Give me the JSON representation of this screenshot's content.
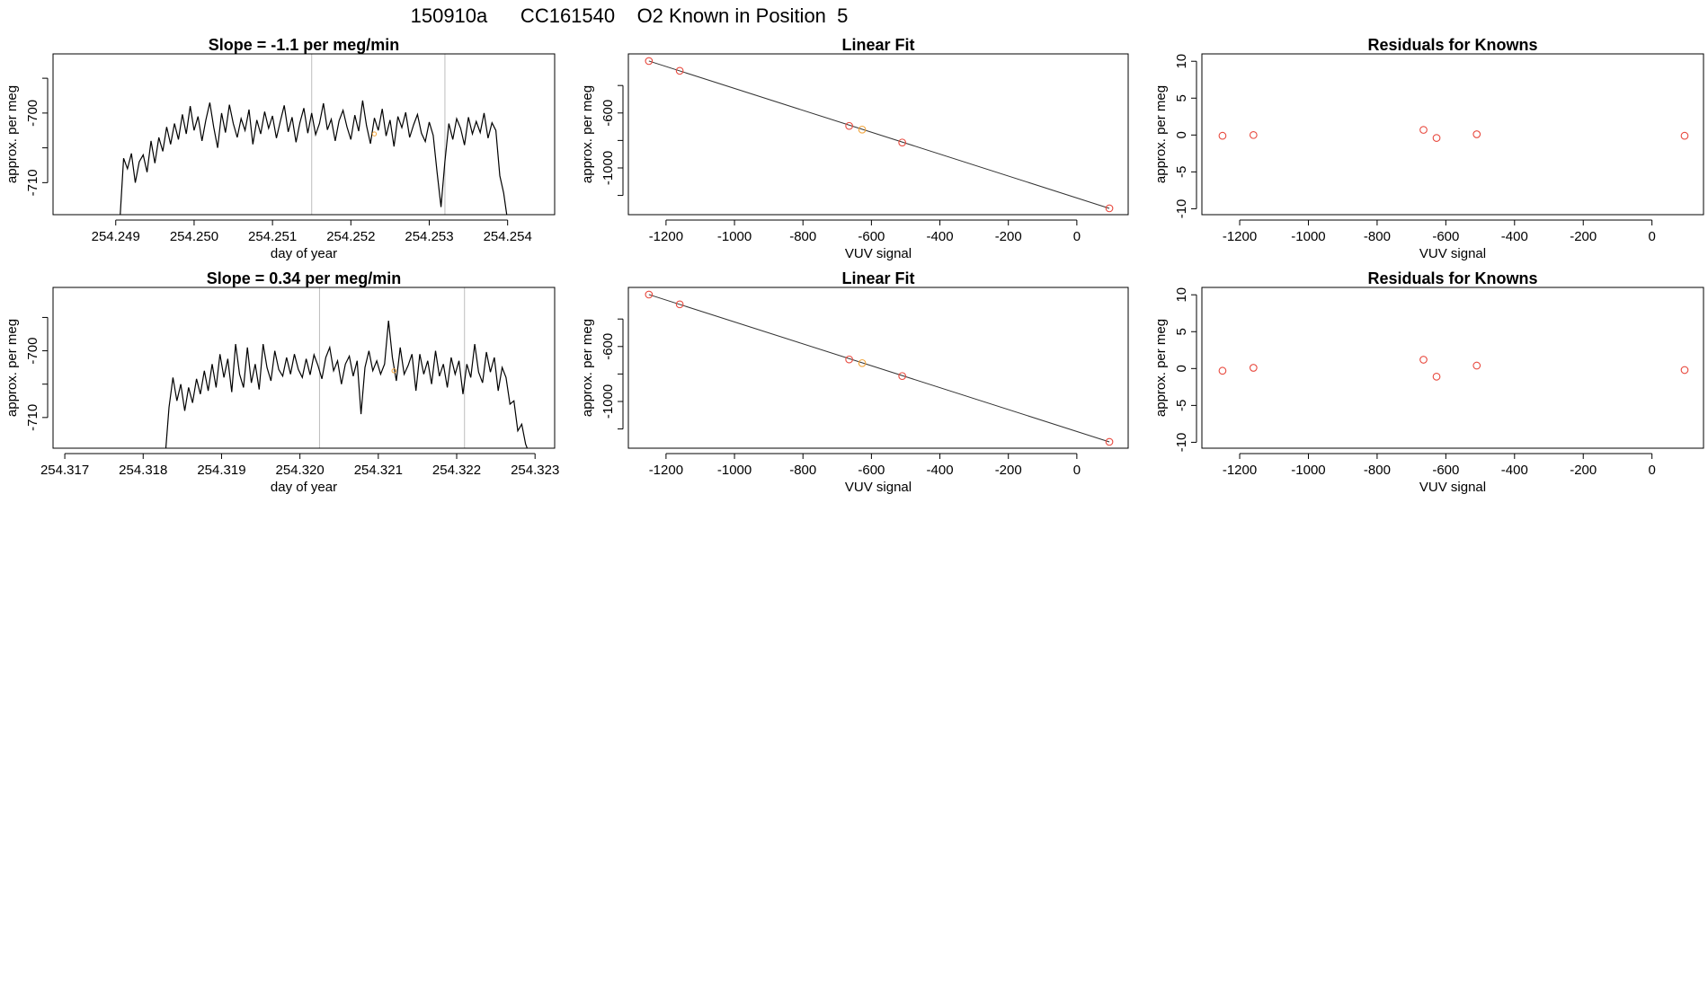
{
  "page_title": "150910a      CC161540    O2 Known in Position  5",
  "colors": {
    "trace": "#000000",
    "known_point": "#e8493e",
    "unknown_point": "#f2a43a",
    "vline": "#bdbdbd",
    "axis": "#000000"
  },
  "chart_data": [
    {
      "type": "line",
      "title": "Slope =  -1.1  per meg/min",
      "xlabel": "day of year",
      "ylabel": "approx. per meg",
      "xlim": [
        254.2482,
        254.2546
      ],
      "ylim": [
        -714.6,
        -691.5
      ],
      "xticks": [
        {
          "v": 254.249,
          "label": "254.249"
        },
        {
          "v": 254.25,
          "label": "254.250"
        },
        {
          "v": 254.251,
          "label": "254.251"
        },
        {
          "v": 254.252,
          "label": "254.252"
        },
        {
          "v": 254.253,
          "label": "254.253"
        },
        {
          "v": 254.254,
          "label": "254.254"
        }
      ],
      "yticks": [
        {
          "v": -695,
          "label": ""
        },
        {
          "v": -700,
          "label": "-700"
        },
        {
          "v": -705,
          "label": ""
        },
        {
          "v": -710,
          "label": "-710"
        }
      ],
      "vlines": [
        254.2515,
        254.2532
      ],
      "series_mean": -702.3,
      "highlight": {
        "x": 254.2523,
        "y": -703.0
      },
      "x": [
        254.24905,
        254.2491,
        254.24915,
        254.2492,
        254.24925,
        254.2493,
        254.24935,
        254.2494,
        254.24945,
        254.2495,
        254.24955,
        254.2496,
        254.24965,
        254.2497,
        254.24975,
        254.2498,
        254.24985,
        254.2499,
        254.24995,
        254.25,
        254.25005,
        254.2501,
        254.25015,
        254.2502,
        254.25025,
        254.2503,
        254.25035,
        254.2504,
        254.25045,
        254.2505,
        254.25055,
        254.2506,
        254.25065,
        254.2507,
        254.25075,
        254.2508,
        254.25085,
        254.2509,
        254.25095,
        254.251,
        254.25105,
        254.2511,
        254.25115,
        254.2512,
        254.25125,
        254.2513,
        254.25135,
        254.2514,
        254.25145,
        254.2515,
        254.25155,
        254.2516,
        254.25165,
        254.2517,
        254.25175,
        254.2518,
        254.25185,
        254.2519,
        254.25195,
        254.252,
        254.25205,
        254.2521,
        254.25215,
        254.2522,
        254.25225,
        254.2523,
        254.25235,
        254.2524,
        254.25245,
        254.2525,
        254.25255,
        254.2526,
        254.25265,
        254.2527,
        254.25275,
        254.2528,
        254.25285,
        254.2529,
        254.25295,
        254.253,
        254.25305,
        254.2531,
        254.25315,
        254.2532,
        254.25325,
        254.2533,
        254.25335,
        254.2534,
        254.25345,
        254.2535,
        254.25355,
        254.2536,
        254.25365,
        254.2537,
        254.25375,
        254.2538,
        254.25385,
        254.2539,
        254.25395,
        254.254
      ],
      "y": [
        -716.0,
        -706.5,
        -708.0,
        -705.8,
        -710.0,
        -707.0,
        -706.0,
        -708.5,
        -704.0,
        -707.2,
        -703.5,
        -705.5,
        -702.0,
        -704.5,
        -701.5,
        -703.8,
        -700.2,
        -703.0,
        -699.0,
        -702.5,
        -700.5,
        -704.0,
        -701.0,
        -698.5,
        -702.0,
        -705.0,
        -700.0,
        -702.8,
        -698.8,
        -701.5,
        -703.5,
        -700.8,
        -702.5,
        -699.5,
        -704.5,
        -701.0,
        -703.0,
        -699.8,
        -702.2,
        -700.4,
        -703.6,
        -701.2,
        -698.9,
        -702.7,
        -700.6,
        -704.2,
        -701.4,
        -699.3,
        -702.9,
        -700.0,
        -703.1,
        -701.5,
        -698.6,
        -702.4,
        -700.9,
        -704.0,
        -701.1,
        -699.6,
        -702.0,
        -703.8,
        -700.3,
        -702.6,
        -698.2,
        -701.8,
        -704.4,
        -700.7,
        -702.5,
        -699.4,
        -703.3,
        -701.0,
        -704.8,
        -700.5,
        -702.1,
        -699.9,
        -703.5,
        -701.7,
        -700.2,
        -702.9,
        -704.1,
        -701.3,
        -703.2,
        -708.5,
        -713.5,
        -707.0,
        -701.5,
        -703.8,
        -700.8,
        -702.2,
        -704.6,
        -700.6,
        -703.0,
        -701.2,
        -702.8,
        -700.0,
        -703.6,
        -701.4,
        -702.5,
        -709.0,
        -711.5,
        -715.5
      ]
    },
    {
      "type": "scatter",
      "title": "Linear Fit",
      "xlabel": "VUV signal",
      "ylabel": "approx. per meg",
      "xlim": [
        -1310,
        150
      ],
      "ylim": [
        -1340,
        -170
      ],
      "xticks": [
        {
          "v": -1200,
          "label": "-1200"
        },
        {
          "v": -1000,
          "label": "-1000"
        },
        {
          "v": -800,
          "label": "-800"
        },
        {
          "v": -600,
          "label": "-600"
        },
        {
          "v": -400,
          "label": "-400"
        },
        {
          "v": -200,
          "label": "-200"
        },
        {
          "v": 0,
          "label": "0"
        }
      ],
      "yticks": [
        {
          "v": -400,
          "label": ""
        },
        {
          "v": -600,
          "label": "-600"
        },
        {
          "v": -800,
          "label": ""
        },
        {
          "v": -1000,
          "label": "-1000"
        },
        {
          "v": -1200,
          "label": ""
        }
      ],
      "fit_line": {
        "x": [
          -1250,
          95
        ],
        "y": [
          -222,
          -1294
        ]
      },
      "points": [
        {
          "x": -1250,
          "y": -222,
          "kind": "known"
        },
        {
          "x": -1160,
          "y": -293,
          "kind": "known"
        },
        {
          "x": -665,
          "y": -694,
          "kind": "known"
        },
        {
          "x": -627,
          "y": -721,
          "kind": "unknown"
        },
        {
          "x": -510,
          "y": -815,
          "kind": "known"
        },
        {
          "x": 95,
          "y": -1294,
          "kind": "known"
        }
      ]
    },
    {
      "type": "scatter",
      "title": "Residuals for Knowns",
      "xlabel": "VUV signal",
      "ylabel": "approx. per meg",
      "xlim": [
        -1310,
        150
      ],
      "ylim": [
        -10.8,
        11
      ],
      "xticks": [
        {
          "v": -1200,
          "label": "-1200"
        },
        {
          "v": -1000,
          "label": "-1000"
        },
        {
          "v": -800,
          "label": "-800"
        },
        {
          "v": -600,
          "label": "-600"
        },
        {
          "v": -400,
          "label": "-400"
        },
        {
          "v": -200,
          "label": "-200"
        },
        {
          "v": 0,
          "label": "0"
        }
      ],
      "yticks": [
        {
          "v": 10,
          "label": "10"
        },
        {
          "v": 5,
          "label": "5"
        },
        {
          "v": 0,
          "label": "0"
        },
        {
          "v": -5,
          "label": "-5"
        },
        {
          "v": -10,
          "label": "-10"
        }
      ],
      "points": [
        {
          "x": -1250,
          "y": -0.1,
          "kind": "known"
        },
        {
          "x": -1160,
          "y": 0.0,
          "kind": "known"
        },
        {
          "x": -665,
          "y": 0.7,
          "kind": "known"
        },
        {
          "x": -627,
          "y": -0.4,
          "kind": "known"
        },
        {
          "x": -510,
          "y": 0.1,
          "kind": "known"
        },
        {
          "x": 95,
          "y": -0.1,
          "kind": "known"
        }
      ]
    },
    {
      "type": "line",
      "title": "Slope =  0.34  per meg/min",
      "xlabel": "day of year",
      "ylabel": "approx. per meg",
      "xlim": [
        254.31685,
        254.32325
      ],
      "ylim": [
        -714.6,
        -690.5
      ],
      "xticks": [
        {
          "v": 254.317,
          "label": "254.317"
        },
        {
          "v": 254.318,
          "label": "254.318"
        },
        {
          "v": 254.319,
          "label": "254.319"
        },
        {
          "v": 254.32,
          "label": "254.320"
        },
        {
          "v": 254.321,
          "label": "254.321"
        },
        {
          "v": 254.322,
          "label": "254.322"
        },
        {
          "v": 254.323,
          "label": "254.323"
        }
      ],
      "yticks": [
        {
          "v": -695,
          "label": ""
        },
        {
          "v": -700,
          "label": "-700"
        },
        {
          "v": -705,
          "label": ""
        },
        {
          "v": -710,
          "label": "-710"
        }
      ],
      "vlines": [
        254.32025,
        254.3221
      ],
      "series_mean": -702.8,
      "highlight": {
        "x": 254.3212,
        "y": -703.0
      },
      "x": [
        254.31828,
        254.31833,
        254.31838,
        254.31843,
        254.31848,
        254.31853,
        254.31858,
        254.31863,
        254.31868,
        254.31873,
        254.31878,
        254.31883,
        254.31888,
        254.31893,
        254.31898,
        254.31903,
        254.31908,
        254.31913,
        254.31918,
        254.31923,
        254.31928,
        254.31933,
        254.31938,
        254.31943,
        254.31948,
        254.31953,
        254.31958,
        254.31963,
        254.31968,
        254.31973,
        254.31978,
        254.31983,
        254.31988,
        254.31993,
        254.31998,
        254.32003,
        254.32008,
        254.32013,
        254.32018,
        254.32023,
        254.32028,
        254.32033,
        254.32038,
        254.32043,
        254.32048,
        254.32053,
        254.32058,
        254.32063,
        254.32068,
        254.32073,
        254.32078,
        254.32083,
        254.32088,
        254.32093,
        254.32098,
        254.32103,
        254.32108,
        254.32113,
        254.32118,
        254.32123,
        254.32128,
        254.32133,
        254.32138,
        254.32143,
        254.32148,
        254.32153,
        254.32158,
        254.32163,
        254.32168,
        254.32173,
        254.32178,
        254.32183,
        254.32188,
        254.32193,
        254.32198,
        254.32203,
        254.32208,
        254.32213,
        254.32218,
        254.32223,
        254.32228,
        254.32233,
        254.32238,
        254.32243,
        254.32248,
        254.32253,
        254.32258,
        254.32263,
        254.32268,
        254.32273,
        254.32278,
        254.32283,
        254.32288,
        254.32293
      ],
      "y": [
        -716.0,
        -708.5,
        -704.0,
        -707.5,
        -705.0,
        -709.0,
        -705.5,
        -707.8,
        -704.2,
        -706.5,
        -703.0,
        -706.0,
        -702.0,
        -705.5,
        -700.5,
        -704.0,
        -701.2,
        -706.2,
        -699.0,
        -703.5,
        -705.5,
        -699.5,
        -704.8,
        -702.0,
        -705.8,
        -699.0,
        -702.5,
        -704.5,
        -700.0,
        -702.8,
        -703.8,
        -701.0,
        -703.5,
        -700.5,
        -702.8,
        -704.0,
        -701.2,
        -703.6,
        -700.6,
        -702.2,
        -704.2,
        -701.0,
        -699.5,
        -703.0,
        -701.5,
        -705.0,
        -702.0,
        -700.8,
        -703.8,
        -701.5,
        -709.5,
        -702.5,
        -700.0,
        -703.0,
        -701.5,
        -703.5,
        -702.0,
        -695.5,
        -701.0,
        -704.5,
        -699.5,
        -703.5,
        -702.2,
        -700.5,
        -706.0,
        -700.5,
        -703.5,
        -701.5,
        -705.0,
        -700.0,
        -703.8,
        -702.0,
        -705.5,
        -701.0,
        -703.5,
        -701.5,
        -706.5,
        -702.0,
        -704.0,
        -699.0,
        -703.2,
        -704.8,
        -700.2,
        -703.2,
        -701.0,
        -706.0,
        -702.5,
        -704.0,
        -708.0,
        -707.5,
        -712.0,
        -711.0,
        -714.0,
        -715.5
      ]
    },
    {
      "type": "scatter",
      "title": "Linear Fit",
      "xlabel": "VUV signal",
      "ylabel": "approx. per meg",
      "xlim": [
        -1310,
        150
      ],
      "ylim": [
        -1340,
        -170
      ],
      "xticks": [
        {
          "v": -1200,
          "label": "-1200"
        },
        {
          "v": -1000,
          "label": "-1000"
        },
        {
          "v": -800,
          "label": "-800"
        },
        {
          "v": -600,
          "label": "-600"
        },
        {
          "v": -400,
          "label": "-400"
        },
        {
          "v": -200,
          "label": "-200"
        },
        {
          "v": 0,
          "label": "0"
        }
      ],
      "yticks": [
        {
          "v": -400,
          "label": ""
        },
        {
          "v": -600,
          "label": "-600"
        },
        {
          "v": -800,
          "label": ""
        },
        {
          "v": -1000,
          "label": "-1000"
        },
        {
          "v": -1200,
          "label": ""
        }
      ],
      "fit_line": {
        "x": [
          -1250,
          95
        ],
        "y": [
          -222,
          -1294
        ]
      },
      "points": [
        {
          "x": -1250,
          "y": -222,
          "kind": "known"
        },
        {
          "x": -1160,
          "y": -293,
          "kind": "known"
        },
        {
          "x": -665,
          "y": -694,
          "kind": "known"
        },
        {
          "x": -627,
          "y": -721,
          "kind": "unknown"
        },
        {
          "x": -510,
          "y": -815,
          "kind": "known"
        },
        {
          "x": 95,
          "y": -1294,
          "kind": "known"
        }
      ]
    },
    {
      "type": "scatter",
      "title": "Residuals for Knowns",
      "xlabel": "VUV signal",
      "ylabel": "approx. per meg",
      "xlim": [
        -1310,
        150
      ],
      "ylim": [
        -10.8,
        11
      ],
      "xticks": [
        {
          "v": -1200,
          "label": "-1200"
        },
        {
          "v": -1000,
          "label": "-1000"
        },
        {
          "v": -800,
          "label": "-800"
        },
        {
          "v": -600,
          "label": "-600"
        },
        {
          "v": -400,
          "label": "-400"
        },
        {
          "v": -200,
          "label": "-200"
        },
        {
          "v": 0,
          "label": "0"
        }
      ],
      "yticks": [
        {
          "v": 10,
          "label": "10"
        },
        {
          "v": 5,
          "label": "5"
        },
        {
          "v": 0,
          "label": "0"
        },
        {
          "v": -5,
          "label": "-5"
        },
        {
          "v": -10,
          "label": "-10"
        }
      ],
      "points": [
        {
          "x": -1250,
          "y": -0.3,
          "kind": "known"
        },
        {
          "x": -1160,
          "y": 0.1,
          "kind": "known"
        },
        {
          "x": -665,
          "y": 1.2,
          "kind": "known"
        },
        {
          "x": -627,
          "y": -1.1,
          "kind": "known"
        },
        {
          "x": -510,
          "y": 0.4,
          "kind": "known"
        },
        {
          "x": 95,
          "y": -0.2,
          "kind": "known"
        }
      ]
    }
  ]
}
